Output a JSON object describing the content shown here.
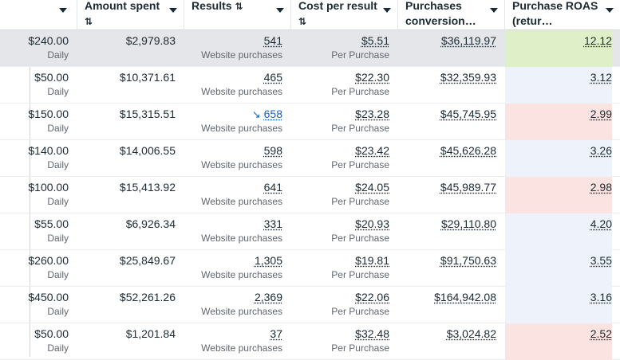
{
  "columns": [
    {
      "key": "budget",
      "title": "",
      "sortable": false
    },
    {
      "key": "amount",
      "title": "Amount spent",
      "sortable": true
    },
    {
      "key": "results",
      "title": "Results",
      "sortable": true
    },
    {
      "key": "cpr",
      "title": "Cost per result",
      "sortable": true
    },
    {
      "key": "conv",
      "title": "Purchases conversion…",
      "sortable": false
    },
    {
      "key": "roas",
      "title": "Purchase ROAS (retur…",
      "sortable": false
    }
  ],
  "rows": [
    {
      "budget": "$240.00",
      "budget_sub": "Daily",
      "amount": "$2,979.83",
      "results": "541",
      "results_sub": "Website purchases",
      "results_link": false,
      "cpr": "$5.51",
      "cpr_sub": "Per Purchase",
      "conv": "$36,119.97",
      "roas": "12.12",
      "roas_color": "#dff0c8",
      "selected": true
    },
    {
      "budget": "$50.00",
      "budget_sub": "Daily",
      "amount": "$10,371.61",
      "results": "465",
      "results_sub": "Website purchases",
      "results_link": false,
      "cpr": "$22.30",
      "cpr_sub": "Per Purchase",
      "conv": "$32,359.93",
      "roas": "3.12",
      "roas_color": "#eef3fb",
      "selected": false
    },
    {
      "budget": "$150.00",
      "budget_sub": "Daily",
      "amount": "$15,315.51",
      "results": "658",
      "results_sub": "Website purchases",
      "results_link": true,
      "cpr": "$23.28",
      "cpr_sub": "Per Purchase",
      "conv": "$45,745.95",
      "roas": "2.99",
      "roas_color": "#fbe3e1",
      "selected": false
    },
    {
      "budget": "$140.00",
      "budget_sub": "Daily",
      "amount": "$14,006.55",
      "results": "598",
      "results_sub": "Website purchases",
      "results_link": false,
      "cpr": "$23.42",
      "cpr_sub": "Per Purchase",
      "conv": "$45,626.28",
      "roas": "3.26",
      "roas_color": "#eef3fb",
      "selected": false
    },
    {
      "budget": "$100.00",
      "budget_sub": "Daily",
      "amount": "$15,413.92",
      "results": "641",
      "results_sub": "Website purchases",
      "results_link": false,
      "cpr": "$24.05",
      "cpr_sub": "Per Purchase",
      "conv": "$45,989.77",
      "roas": "2.98",
      "roas_color": "#fbe3e1",
      "selected": false
    },
    {
      "budget": "$55.00",
      "budget_sub": "Daily",
      "amount": "$6,926.34",
      "results": "331",
      "results_sub": "Website purchases",
      "results_link": false,
      "cpr": "$20.93",
      "cpr_sub": "Per Purchase",
      "conv": "$29,110.80",
      "roas": "4.20",
      "roas_color": "#eef3fb",
      "selected": false
    },
    {
      "budget": "$260.00",
      "budget_sub": "Daily",
      "amount": "$25,849.67",
      "results": "1,305",
      "results_sub": "Website purchases",
      "results_link": false,
      "cpr": "$19.81",
      "cpr_sub": "Per Purchase",
      "conv": "$91,750.63",
      "roas": "3.55",
      "roas_color": "#eef3fb",
      "selected": false
    },
    {
      "budget": "$450.00",
      "budget_sub": "Daily",
      "amount": "$52,261.26",
      "results": "2,369",
      "results_sub": "Website purchases",
      "results_link": false,
      "cpr": "$22.06",
      "cpr_sub": "Per Purchase",
      "conv": "$164,942.08",
      "roas": "3.16",
      "roas_color": "#eef3fb",
      "selected": false
    },
    {
      "budget": "$50.00",
      "budget_sub": "Daily",
      "amount": "$1,201.84",
      "results": "37",
      "results_sub": "Website purchases",
      "results_link": false,
      "cpr": "$32.48",
      "cpr_sub": "Per Purchase",
      "conv": "$3,024.82",
      "roas": "2.52",
      "roas_color": "#fbe3e1",
      "selected": false
    }
  ],
  "icons": {
    "sort": "sort-arrows-icon",
    "dropdown": "chevron-down-icon",
    "trend": "trend-down-icon"
  },
  "colors": {
    "link": "#1d5fb4",
    "selected_row": "#e4e6e9",
    "good": "#dff0c8",
    "bad": "#fbe3e1",
    "neutral": "#eef3fb"
  }
}
